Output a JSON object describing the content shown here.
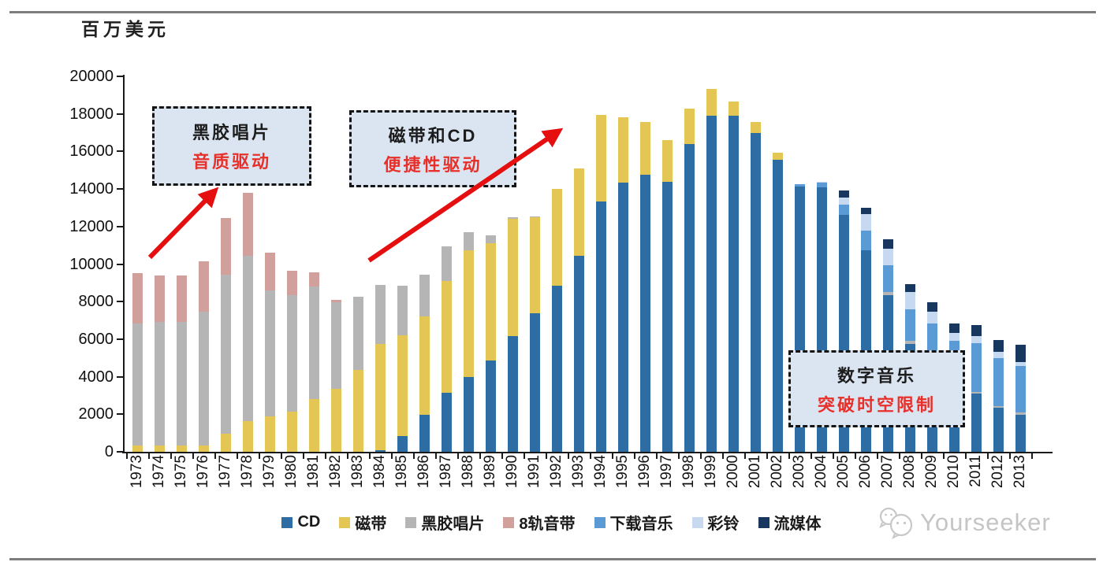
{
  "page": {
    "unit_label": "百万美元",
    "watermark": "Yourseeker"
  },
  "annotations": [
    {
      "line1": "黑胶唱片",
      "line2": "音质驱动"
    },
    {
      "line1": "磁带和CD",
      "line2": "便捷性驱动"
    },
    {
      "line1": "数字音乐",
      "line2": "突破时空限制"
    }
  ],
  "chart_data": {
    "type": "bar",
    "stacked": true,
    "title": "",
    "xlabel": "",
    "ylabel": "百万美元",
    "ylim": [
      0,
      20000
    ],
    "ytick_step": 2000,
    "grid": false,
    "legend_position": "bottom",
    "annotation_colors": {
      "box_bg": "#dbe5f1",
      "box_border": "#141414",
      "highlight_red": "#e8302a",
      "arrow_red": "#e50f0f"
    },
    "categories": [
      "1973",
      "1974",
      "1975",
      "1976",
      "1977",
      "1978",
      "1979",
      "1980",
      "1981",
      "1982",
      "1983",
      "1984",
      "1985",
      "1986",
      "1987",
      "1988",
      "1989",
      "1990",
      "1991",
      "1992",
      "1993",
      "1994",
      "1995",
      "1996",
      "1997",
      "1998",
      "1999",
      "2000",
      "2001",
      "2002",
      "2003",
      "2004",
      "2005",
      "2006",
      "2007",
      "2008",
      "2009",
      "2010",
      "2011",
      "2012",
      "2013"
    ],
    "series": [
      {
        "name": "CD",
        "color": "#2e6da4",
        "values": [
          0,
          0,
          0,
          0,
          0,
          0,
          0,
          0,
          0,
          0,
          0,
          100,
          850,
          1950,
          3150,
          4000,
          4850,
          6150,
          7400,
          8850,
          10450,
          13350,
          14350,
          14750,
          14400,
          16400,
          17900,
          17900,
          17000,
          15550,
          14150,
          14100,
          12600,
          10750,
          8350,
          5750,
          4300,
          3500,
          3100,
          2350,
          1980
        ]
      },
      {
        "name": "磁带",
        "color": "#e4c654",
        "values": [
          350,
          350,
          350,
          350,
          950,
          1650,
          1900,
          2150,
          2800,
          3350,
          4350,
          5650,
          5350,
          5250,
          5950,
          6750,
          6250,
          6250,
          5100,
          5150,
          4650,
          4600,
          3450,
          2800,
          2200,
          1900,
          1450,
          750,
          550,
          400,
          0,
          0,
          0,
          0,
          0,
          0,
          0,
          0,
          0,
          0,
          0
        ]
      },
      {
        "name": "黑胶唱片",
        "color": "#b5b5b5",
        "values": [
          6500,
          6550,
          6550,
          7100,
          8500,
          8800,
          6700,
          6200,
          6000,
          4600,
          3900,
          3150,
          2650,
          2250,
          1850,
          950,
          450,
          100,
          50,
          0,
          0,
          0,
          0,
          0,
          0,
          0,
          0,
          0,
          0,
          0,
          0,
          0,
          0,
          0,
          150,
          150,
          100,
          100,
          100,
          100,
          100
        ]
      },
      {
        "name": "8轨音带",
        "color": "#d19f9c",
        "values": [
          2650,
          2500,
          2500,
          2700,
          3000,
          3350,
          2000,
          1300,
          750,
          150,
          0,
          0,
          0,
          0,
          0,
          0,
          0,
          0,
          0,
          0,
          0,
          0,
          0,
          0,
          0,
          0,
          0,
          0,
          0,
          0,
          0,
          0,
          0,
          0,
          0,
          0,
          0,
          0,
          0,
          0,
          0
        ]
      },
      {
        "name": "下载音乐",
        "color": "#5b9bd5",
        "values": [
          0,
          0,
          0,
          0,
          0,
          0,
          0,
          0,
          0,
          0,
          0,
          0,
          0,
          0,
          0,
          0,
          0,
          0,
          0,
          0,
          0,
          0,
          0,
          0,
          0,
          0,
          0,
          0,
          0,
          0,
          100,
          250,
          550,
          1050,
          1450,
          1700,
          2450,
          2300,
          2590,
          2540,
          2490
        ]
      },
      {
        "name": "彩铃",
        "color": "#c6d9f0",
        "values": [
          0,
          0,
          0,
          0,
          0,
          0,
          0,
          0,
          0,
          0,
          0,
          0,
          0,
          0,
          0,
          0,
          0,
          0,
          0,
          0,
          0,
          0,
          0,
          0,
          0,
          0,
          0,
          0,
          0,
          0,
          0,
          50,
          400,
          850,
          850,
          900,
          630,
          445,
          390,
          350,
          210
        ]
      },
      {
        "name": "流媒体",
        "color": "#17375e",
        "values": [
          0,
          0,
          0,
          0,
          0,
          0,
          0,
          0,
          0,
          0,
          0,
          0,
          0,
          0,
          0,
          0,
          0,
          0,
          0,
          0,
          0,
          0,
          0,
          0,
          0,
          0,
          0,
          0,
          0,
          0,
          0,
          0,
          350,
          350,
          500,
          450,
          490,
          490,
          560,
          630,
          910
        ]
      }
    ]
  }
}
